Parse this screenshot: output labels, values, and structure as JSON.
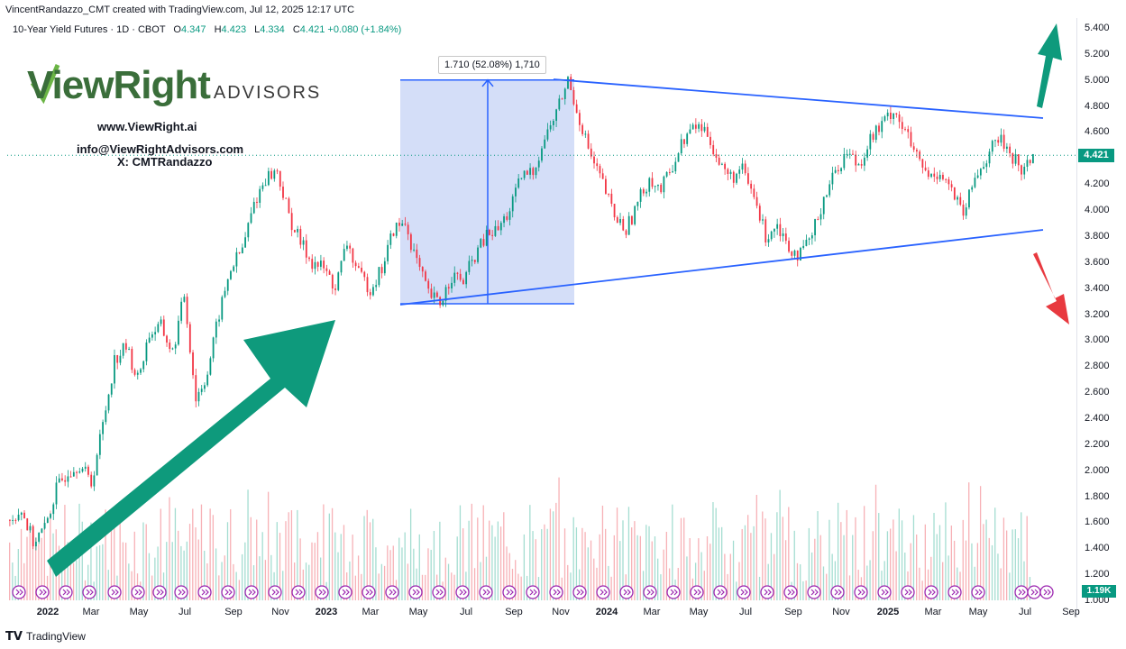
{
  "header": {
    "created_line": "VincentRandazzo_CMT created with TradingView.com, Jul 12, 2025 12:17 UTC"
  },
  "legend": {
    "symbol": "10-Year Yield Futures · 1D · CBOT",
    "open_label": "O",
    "open": "4.347",
    "high_label": "H",
    "high": "4.423",
    "low_label": "L",
    "low": "4.334",
    "close_label": "C",
    "close": "4.421",
    "change": "+0.080 (+1.84%)"
  },
  "branding": {
    "logo_main": "ViewRight",
    "logo_sub": "ADVISORS",
    "website": "www.ViewRight.ai",
    "email": "info@ViewRightAdvisors.com",
    "x_handle": "X: CMTRandazzo"
  },
  "measure_label": "1.710 (52.08%) 1,710",
  "price_tag": "4.421",
  "volume_tag": "1.19K",
  "footer": {
    "brand": "TradingView"
  },
  "colors": {
    "up": "#089981",
    "down": "#f23645",
    "trendline": "#2962ff",
    "measure_fill": "#c5d3f6",
    "arrow_green": "#0e9a7c",
    "arrow_red": "#e8393f"
  },
  "chart_data": {
    "type": "candlestick",
    "ylim": [
      1.0,
      5.45
    ],
    "y_ticks": [
      "5.400",
      "5.200",
      "5.000",
      "4.800",
      "4.600",
      "4.400",
      "4.200",
      "4.000",
      "3.800",
      "3.600",
      "3.400",
      "3.200",
      "3.000",
      "2.800",
      "2.600",
      "2.400",
      "2.200",
      "2.000",
      "1.800",
      "1.600",
      "1.400",
      "1.200",
      "1.000"
    ],
    "x_ticks": [
      "2022",
      "Mar",
      "May",
      "Jul",
      "Sep",
      "Nov",
      "2023",
      "Mar",
      "May",
      "Jul",
      "Sep",
      "Nov",
      "2024",
      "Mar",
      "May",
      "Jul",
      "Sep",
      "Nov",
      "2025",
      "Mar",
      "May",
      "Jul",
      "Sep"
    ],
    "bold_x_ticks": [
      "2022",
      "2023",
      "2024",
      "2025"
    ],
    "price_path": [
      [
        0,
        1.62
      ],
      [
        2,
        1.7
      ],
      [
        4,
        1.45
      ],
      [
        6,
        1.55
      ],
      [
        8,
        1.85
      ],
      [
        10,
        2.0
      ],
      [
        12,
        2.05
      ],
      [
        14,
        1.9
      ],
      [
        16,
        2.35
      ],
      [
        18,
        2.85
      ],
      [
        20,
        2.95
      ],
      [
        22,
        2.7
      ],
      [
        24,
        3.05
      ],
      [
        26,
        3.1
      ],
      [
        28,
        2.9
      ],
      [
        30,
        3.35
      ],
      [
        32,
        2.55
      ],
      [
        34,
        2.75
      ],
      [
        36,
        3.2
      ],
      [
        38,
        3.55
      ],
      [
        40,
        3.7
      ],
      [
        42,
        4.05
      ],
      [
        44,
        4.25
      ],
      [
        46,
        4.3
      ],
      [
        48,
        3.95
      ],
      [
        50,
        3.75
      ],
      [
        52,
        3.6
      ],
      [
        54,
        3.55
      ],
      [
        56,
        3.4
      ],
      [
        58,
        3.75
      ],
      [
        60,
        3.5
      ],
      [
        62,
        3.4
      ],
      [
        64,
        3.55
      ],
      [
        66,
        3.85
      ],
      [
        68,
        3.9
      ],
      [
        70,
        3.6
      ],
      [
        72,
        3.35
      ],
      [
        74,
        3.28
      ],
      [
        76,
        3.5
      ],
      [
        78,
        3.45
      ],
      [
        80,
        3.65
      ],
      [
        82,
        3.8
      ],
      [
        84,
        3.85
      ],
      [
        86,
        4.0
      ],
      [
        88,
        4.25
      ],
      [
        90,
        4.3
      ],
      [
        92,
        4.55
      ],
      [
        94,
        4.75
      ],
      [
        96,
        5.0
      ],
      [
        98,
        4.7
      ],
      [
        100,
        4.4
      ],
      [
        102,
        4.2
      ],
      [
        104,
        3.95
      ],
      [
        106,
        3.85
      ],
      [
        108,
        4.05
      ],
      [
        110,
        4.25
      ],
      [
        112,
        4.15
      ],
      [
        114,
        4.35
      ],
      [
        116,
        4.55
      ],
      [
        118,
        4.65
      ],
      [
        120,
        4.6
      ],
      [
        122,
        4.35
      ],
      [
        124,
        4.25
      ],
      [
        126,
        4.3
      ],
      [
        128,
        4.1
      ],
      [
        130,
        3.8
      ],
      [
        132,
        3.9
      ],
      [
        134,
        3.72
      ],
      [
        136,
        3.65
      ],
      [
        138,
        3.8
      ],
      [
        140,
        4.1
      ],
      [
        142,
        4.3
      ],
      [
        144,
        4.45
      ],
      [
        146,
        4.35
      ],
      [
        148,
        4.55
      ],
      [
        150,
        4.65
      ],
      [
        152,
        4.78
      ],
      [
        154,
        4.6
      ],
      [
        156,
        4.4
      ],
      [
        158,
        4.25
      ],
      [
        160,
        4.3
      ],
      [
        162,
        4.15
      ],
      [
        164,
        3.95
      ],
      [
        166,
        4.25
      ],
      [
        168,
        4.4
      ],
      [
        170,
        4.55
      ],
      [
        172,
        4.45
      ],
      [
        174,
        4.3
      ],
      [
        176,
        4.42
      ]
    ],
    "trendline_upper": [
      [
        5.0,
        "Nov 2023"
      ],
      [
        4.7,
        "Jul 2025"
      ]
    ],
    "trendline_lower": [
      [
        3.28,
        "Apr 2023"
      ],
      [
        3.85,
        "Jul 2025"
      ]
    ],
    "measure": {
      "from": 3.28,
      "to": 5.0,
      "change": 1.71,
      "pct": 52.08
    }
  }
}
